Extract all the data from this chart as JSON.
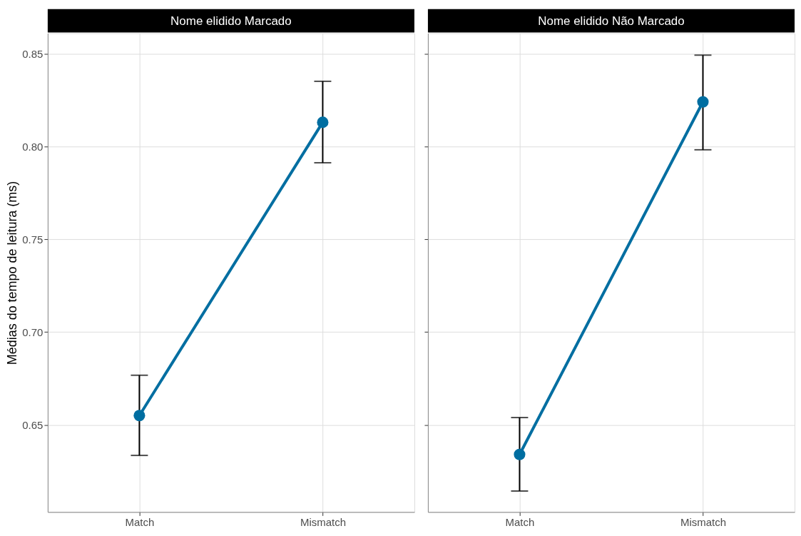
{
  "chart_data": [
    {
      "type": "line",
      "title": "Nome elidido Marcado",
      "ylabel": "Médias do tempo de leitura (ms)",
      "categories": [
        "Match",
        "Mismatch"
      ],
      "series": [
        {
          "color": "#006ea1",
          "values": [
            0.655,
            0.813
          ],
          "errors": [
            [
              0.6335,
              0.6767
            ],
            [
              0.7912,
              0.8351
            ]
          ]
        }
      ],
      "ylim": [
        0.603,
        0.861
      ],
      "yticks": [
        0.65,
        {
          "value": 0.7,
          "label": "0.70"
        },
        0.75,
        {
          "value": 0.8,
          "label": "0.80"
        },
        0.85
      ],
      "grid": true,
      "marker": "circle"
    },
    {
      "type": "line",
      "title": "Nome elidido Não Marcado",
      "categories": [
        "Match",
        "Mismatch"
      ],
      "series": [
        {
          "color": "#006ea1",
          "values": [
            0.634,
            0.824
          ],
          "errors": [
            [
              0.6143,
              0.6539
            ],
            [
              0.7982,
              0.8492
            ]
          ]
        }
      ],
      "ylim": [
        0.603,
        0.861
      ],
      "yticks": [
        0.65,
        0.7,
        0.75,
        0.8,
        0.85
      ],
      "grid": true,
      "marker": "circle",
      "tick_labels": "x"
    }
  ]
}
